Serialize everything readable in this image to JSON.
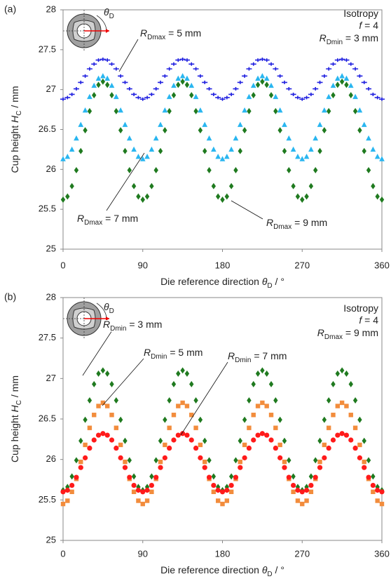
{
  "chart_data": [
    {
      "type": "scatter",
      "panel_label": "(a)",
      "x_label": {
        "pre": "Die reference direction ",
        "var": "θ",
        "sub": "D",
        "post": " / °"
      },
      "y_label": {
        "pre": "Cup height ",
        "var": "H",
        "sub": "C",
        "post": " / mm"
      },
      "icon_label": {
        "var": "θ",
        "sub": "D"
      },
      "conditions": [
        {
          "text": "Isotropy"
        },
        {
          "var": "f",
          "post": " = 4"
        },
        {
          "var": "R",
          "sub": "Dmin",
          "post": " = 3 mm"
        }
      ],
      "xlim": [
        0,
        360
      ],
      "xticks": [
        0,
        90,
        180,
        270,
        360
      ],
      "ylim": [
        25,
        28
      ],
      "yticks": [
        25,
        25.5,
        26,
        26.5,
        27,
        27.5,
        28
      ],
      "x": [
        0,
        5,
        10,
        15,
        20,
        25,
        30,
        35,
        40,
        45,
        50,
        55,
        60,
        65,
        70,
        75,
        80,
        85,
        90,
        95,
        100,
        105,
        110,
        115,
        120,
        125,
        130,
        135,
        140,
        145,
        150,
        155,
        160,
        165,
        170,
        175,
        180,
        185,
        190,
        195,
        200,
        205,
        210,
        215,
        220,
        225,
        230,
        235,
        240,
        245,
        250,
        255,
        260,
        265,
        270,
        275,
        280,
        285,
        290,
        295,
        300,
        305,
        310,
        315,
        320,
        325,
        330,
        335,
        340,
        345,
        350,
        355,
        360
      ],
      "series": [
        {
          "name": {
            "var": "R",
            "sub": "Dmax",
            "post": " = 9 mm"
          },
          "color": "#1f7a1f",
          "marker": "diamond",
          "values": [
            25.62,
            25.66,
            25.79,
            25.99,
            26.23,
            26.49,
            26.73,
            26.93,
            27.06,
            27.1,
            27.06,
            26.93,
            26.73,
            26.49,
            26.23,
            25.99,
            25.79,
            25.66,
            25.62,
            25.66,
            25.79,
            25.99,
            26.23,
            26.49,
            26.73,
            26.93,
            27.06,
            27.1,
            27.06,
            26.93,
            26.73,
            26.49,
            26.23,
            25.99,
            25.79,
            25.66,
            25.62,
            25.66,
            25.79,
            25.99,
            26.23,
            26.49,
            26.73,
            26.93,
            27.06,
            27.1,
            27.06,
            26.93,
            26.73,
            26.49,
            26.23,
            25.99,
            25.79,
            25.66,
            25.62,
            25.66,
            25.79,
            25.99,
            26.23,
            26.49,
            26.73,
            26.93,
            27.06,
            27.1,
            27.06,
            26.93,
            26.73,
            26.49,
            26.23,
            25.99,
            25.79,
            25.66,
            25.62
          ]
        },
        {
          "name": {
            "var": "R",
            "sub": "Dmax",
            "post": " = 7 mm"
          },
          "color": "#29b6f0",
          "marker": "triangle",
          "values": [
            26.13,
            26.16,
            26.25,
            26.39,
            26.56,
            26.74,
            26.91,
            27.05,
            27.14,
            27.17,
            27.14,
            27.05,
            26.91,
            26.74,
            26.56,
            26.39,
            26.25,
            26.16,
            26.13,
            26.16,
            26.25,
            26.39,
            26.56,
            26.74,
            26.91,
            27.05,
            27.14,
            27.17,
            27.14,
            27.05,
            26.91,
            26.74,
            26.56,
            26.39,
            26.25,
            26.16,
            26.13,
            26.16,
            26.25,
            26.39,
            26.56,
            26.74,
            26.91,
            27.05,
            27.14,
            27.17,
            27.14,
            27.05,
            26.91,
            26.74,
            26.56,
            26.39,
            26.25,
            26.16,
            26.13,
            26.16,
            26.25,
            26.39,
            26.56,
            26.74,
            26.91,
            27.05,
            27.14,
            27.17,
            27.14,
            27.05,
            26.91,
            26.74,
            26.56,
            26.39,
            26.25,
            26.16,
            26.13
          ]
        },
        {
          "name": {
            "var": "R",
            "sub": "Dmax",
            "post": " = 5 mm"
          },
          "color": "#2020e0",
          "marker": "dash",
          "values": [
            26.88,
            26.9,
            26.94,
            27.01,
            27.09,
            27.17,
            27.26,
            27.32,
            27.37,
            27.38,
            27.37,
            27.32,
            27.26,
            27.17,
            27.09,
            27.01,
            26.94,
            26.9,
            26.88,
            26.9,
            26.94,
            27.01,
            27.09,
            27.17,
            27.26,
            27.32,
            27.37,
            27.38,
            27.37,
            27.32,
            27.26,
            27.17,
            27.09,
            27.01,
            26.94,
            26.9,
            26.88,
            26.9,
            26.94,
            27.01,
            27.09,
            27.17,
            27.26,
            27.32,
            27.37,
            27.38,
            27.37,
            27.32,
            27.26,
            27.17,
            27.09,
            27.01,
            26.94,
            26.9,
            26.88,
            26.9,
            26.94,
            27.01,
            27.09,
            27.17,
            27.26,
            27.32,
            27.37,
            27.38,
            27.37,
            27.32,
            27.26,
            27.17,
            27.09,
            27.01,
            26.94,
            26.9,
            26.88
          ]
        }
      ]
    },
    {
      "type": "scatter",
      "panel_label": "(b)",
      "x_label": {
        "pre": "Die reference direction ",
        "var": "θ",
        "sub": "D",
        "post": " / °"
      },
      "y_label": {
        "pre": "Cup height ",
        "var": "H",
        "sub": "C",
        "post": " / mm"
      },
      "icon_label": {
        "var": "θ",
        "sub": "D"
      },
      "conditions": [
        {
          "text": "Isotropy"
        },
        {
          "var": "f",
          "post": " = 4"
        },
        {
          "var": "R",
          "sub": "Dmax",
          "post": " = 9 mm"
        }
      ],
      "xlim": [
        0,
        360
      ],
      "xticks": [
        0,
        90,
        180,
        270,
        360
      ],
      "ylim": [
        25,
        28
      ],
      "yticks": [
        25,
        25.5,
        26,
        26.5,
        27,
        27.5,
        28
      ],
      "x": [
        0,
        5,
        10,
        15,
        20,
        25,
        30,
        35,
        40,
        45,
        50,
        55,
        60,
        65,
        70,
        75,
        80,
        85,
        90,
        95,
        100,
        105,
        110,
        115,
        120,
        125,
        130,
        135,
        140,
        145,
        150,
        155,
        160,
        165,
        170,
        175,
        180,
        185,
        190,
        195,
        200,
        205,
        210,
        215,
        220,
        225,
        230,
        235,
        240,
        245,
        250,
        255,
        260,
        265,
        270,
        275,
        280,
        285,
        290,
        295,
        300,
        305,
        310,
        315,
        320,
        325,
        330,
        335,
        340,
        345,
        350,
        355,
        360
      ],
      "series": [
        {
          "name": {
            "var": "R",
            "sub": "Dmin",
            "post": " = 3 mm"
          },
          "color": "#1f7a1f",
          "marker": "diamond",
          "values": [
            25.62,
            25.66,
            25.79,
            25.99,
            26.23,
            26.49,
            26.73,
            26.93,
            27.06,
            27.1,
            27.06,
            26.93,
            26.73,
            26.49,
            26.23,
            25.99,
            25.79,
            25.66,
            25.62,
            25.66,
            25.79,
            25.99,
            26.23,
            26.49,
            26.73,
            26.93,
            27.06,
            27.1,
            27.06,
            26.93,
            26.73,
            26.49,
            26.23,
            25.99,
            25.79,
            25.66,
            25.62,
            25.66,
            25.79,
            25.99,
            26.23,
            26.49,
            26.73,
            26.93,
            27.06,
            27.1,
            27.06,
            26.93,
            26.73,
            26.49,
            26.23,
            25.99,
            25.79,
            25.66,
            25.62,
            25.66,
            25.79,
            25.99,
            26.23,
            26.49,
            26.73,
            26.93,
            27.06,
            27.1,
            27.06,
            26.93,
            26.73,
            26.49,
            26.23,
            25.99,
            25.79,
            25.66,
            25.62
          ]
        },
        {
          "name": {
            "var": "R",
            "sub": "Dmin",
            "post": " = 5 mm"
          },
          "color": "#f28c3c",
          "marker": "square",
          "values": [
            25.45,
            25.49,
            25.6,
            25.76,
            25.97,
            26.18,
            26.39,
            26.55,
            26.66,
            26.7,
            26.66,
            26.55,
            26.39,
            26.18,
            25.97,
            25.76,
            25.6,
            25.49,
            25.45,
            25.49,
            25.6,
            25.76,
            25.97,
            26.18,
            26.39,
            26.55,
            26.66,
            26.7,
            26.66,
            26.55,
            26.39,
            26.18,
            25.97,
            25.76,
            25.6,
            25.49,
            25.45,
            25.49,
            25.6,
            25.76,
            25.97,
            26.18,
            26.39,
            26.55,
            26.66,
            26.7,
            26.66,
            26.55,
            26.39,
            26.18,
            25.97,
            25.76,
            25.6,
            25.49,
            25.45,
            25.49,
            25.6,
            25.76,
            25.97,
            26.18,
            26.39,
            26.55,
            26.66,
            26.7,
            26.66,
            26.55,
            26.39,
            26.18,
            25.97,
            25.76,
            25.6,
            25.49,
            25.45
          ]
        },
        {
          "name": {
            "var": "R",
            "sub": "Dmin",
            "post": " = 7 mm"
          },
          "color": "#ff1a1a",
          "marker": "circle",
          "values": [
            25.6,
            25.62,
            25.68,
            25.78,
            25.9,
            26.02,
            26.14,
            26.24,
            26.3,
            26.32,
            26.3,
            26.24,
            26.14,
            26.02,
            25.9,
            25.78,
            25.68,
            25.62,
            25.6,
            25.62,
            25.68,
            25.78,
            25.9,
            26.02,
            26.14,
            26.24,
            26.3,
            26.32,
            26.3,
            26.24,
            26.14,
            26.02,
            25.9,
            25.78,
            25.68,
            25.62,
            25.6,
            25.62,
            25.68,
            25.78,
            25.9,
            26.02,
            26.14,
            26.24,
            26.3,
            26.32,
            26.3,
            26.24,
            26.14,
            26.02,
            25.9,
            25.78,
            25.68,
            25.62,
            25.6,
            25.62,
            25.68,
            25.78,
            25.9,
            26.02,
            26.14,
            26.24,
            26.3,
            26.32,
            26.3,
            26.24,
            26.14,
            26.02,
            25.9,
            25.78,
            25.68,
            25.62,
            25.6
          ]
        }
      ]
    }
  ]
}
